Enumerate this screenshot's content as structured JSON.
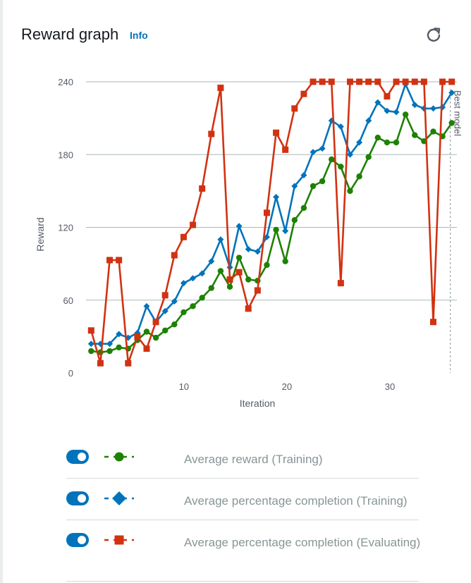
{
  "header": {
    "title": "Reward graph",
    "info_label": "Info",
    "refresh_icon": "refresh-icon"
  },
  "chart_data": {
    "type": "line",
    "xlabel": "Iteration",
    "ylabel": "Reward",
    "xlim": [
      0.5,
      36.5
    ],
    "ylim": [
      0,
      240
    ],
    "xticks": [
      10,
      20,
      30
    ],
    "yticks": [
      0,
      60,
      120,
      180,
      240
    ],
    "grid": "horizontal",
    "annotation": {
      "label": "Best model",
      "x": 36
    },
    "series": [
      {
        "name": "Average reward (Training)",
        "color": "#1d8102",
        "marker": "circle",
        "values": [
          18,
          17,
          18,
          21,
          20,
          27,
          34,
          29,
          35,
          40,
          50,
          55,
          62,
          70,
          84,
          71,
          95,
          77,
          76,
          89,
          118,
          92,
          126,
          136,
          154,
          158,
          176,
          170,
          150,
          162,
          178,
          194,
          190,
          190,
          213,
          196,
          191,
          199,
          195,
          206
        ]
      },
      {
        "name": "Average percentage completion (Training)",
        "color": "#0073bb",
        "marker": "diamond",
        "values": [
          24,
          24,
          24,
          32,
          29,
          33,
          55,
          42,
          51,
          59,
          74,
          78,
          82,
          92,
          110,
          87,
          121,
          102,
          100,
          112,
          145,
          117,
          154,
          163,
          182,
          185,
          208,
          203,
          180,
          190,
          208,
          223,
          216,
          215,
          238,
          221,
          218,
          218,
          219,
          231
        ]
      },
      {
        "name": "Average percentage completion (Evaluating)",
        "color": "#d13212",
        "marker": "square",
        "values": [
          35,
          8,
          93,
          93,
          8,
          30,
          20,
          42,
          64,
          97,
          112,
          122,
          152,
          197,
          235,
          77,
          83,
          53,
          68,
          132,
          198,
          184,
          218,
          230,
          240,
          240,
          240,
          74,
          240,
          240,
          240,
          240,
          228,
          240,
          240,
          240,
          240,
          42,
          240,
          240
        ]
      }
    ]
  },
  "legend": {
    "items": [
      {
        "label": "Average reward (Training)",
        "color": "#1d8102",
        "marker": "circle"
      },
      {
        "label": "Average percentage completion (Training)",
        "color": "#0073bb",
        "marker": "diamond"
      },
      {
        "label": "Average percentage completion (Evaluating)",
        "color": "#d13212",
        "marker": "square"
      }
    ]
  }
}
